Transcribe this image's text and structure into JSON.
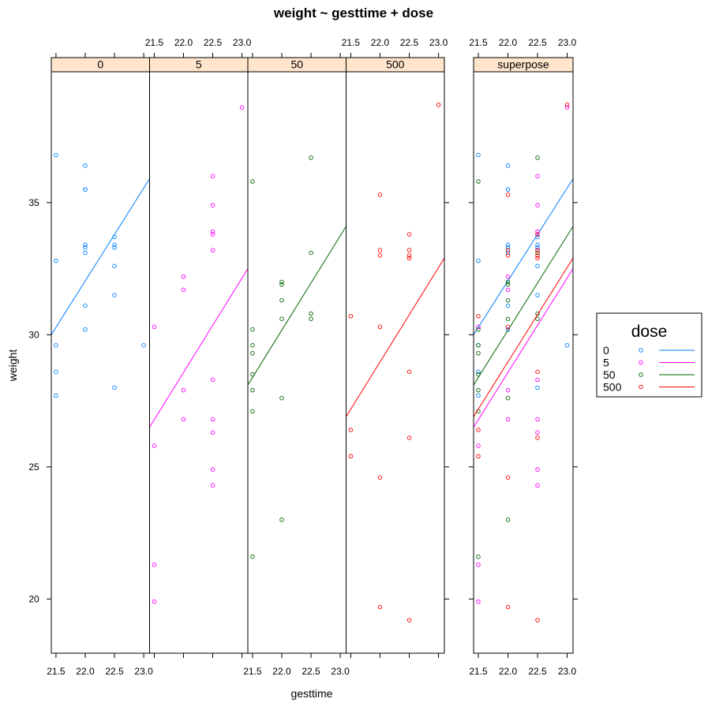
{
  "chart_data": {
    "type": "scatter",
    "title": "weight ~ gesttime + dose",
    "xlabel": "gesttime",
    "ylabel": "weight",
    "xlim": [
      21.42,
      23.1
    ],
    "ylim": [
      17.95,
      39.95
    ],
    "x_ticks": [
      21.5,
      22.0,
      22.5,
      23.0
    ],
    "x_tick_labels": [
      "21.5",
      "22.0",
      "22.5",
      "23.0"
    ],
    "y_ticks": [
      20,
      25,
      30,
      35
    ],
    "y_tick_labels": [
      "20",
      "25",
      "30",
      "35"
    ],
    "panel_bg": "#ffe5cc",
    "panels": [
      {
        "key": "p0",
        "label": "0",
        "series": [
          "d0"
        ]
      },
      {
        "key": "p5",
        "label": "5",
        "series": [
          "d5"
        ]
      },
      {
        "key": "p50",
        "label": "50",
        "series": [
          "d50"
        ]
      },
      {
        "key": "p500",
        "label": "500",
        "series": [
          "d500"
        ]
      },
      {
        "key": "psup",
        "label": "superpose",
        "series": [
          "d0",
          "d5",
          "d50",
          "d500"
        ]
      }
    ],
    "legend": {
      "title": "dose",
      "entries": [
        "0",
        "5",
        "50",
        "500"
      ],
      "position": "right"
    },
    "series": [
      {
        "key": "d0",
        "name": "0",
        "color": "#0080ff",
        "fit": [
          [
            21.42,
            30.0
          ],
          [
            23.1,
            35.9
          ]
        ],
        "points": [
          [
            21.5,
            36.8
          ],
          [
            21.5,
            32.8
          ],
          [
            21.5,
            29.6
          ],
          [
            21.5,
            28.6
          ],
          [
            21.5,
            27.7
          ],
          [
            22.0,
            36.4
          ],
          [
            22.0,
            35.5
          ],
          [
            22.0,
            35.5
          ],
          [
            22.0,
            33.4
          ],
          [
            22.0,
            33.3
          ],
          [
            22.0,
            33.1
          ],
          [
            22.0,
            31.1
          ],
          [
            22.0,
            30.2
          ],
          [
            22.5,
            33.7
          ],
          [
            22.5,
            33.4
          ],
          [
            22.5,
            33.3
          ],
          [
            22.5,
            32.6
          ],
          [
            22.5,
            31.5
          ],
          [
            22.5,
            28.0
          ],
          [
            23.0,
            29.6
          ]
        ]
      },
      {
        "key": "d5",
        "name": "5",
        "color": "#ff00ff",
        "fit": [
          [
            21.42,
            26.5
          ],
          [
            23.1,
            32.5
          ]
        ],
        "points": [
          [
            21.5,
            30.3
          ],
          [
            21.5,
            25.8
          ],
          [
            21.5,
            21.3
          ],
          [
            21.5,
            19.9
          ],
          [
            22.0,
            32.2
          ],
          [
            22.0,
            31.7
          ],
          [
            22.0,
            27.9
          ],
          [
            22.0,
            26.8
          ],
          [
            22.5,
            36.0
          ],
          [
            22.5,
            34.9
          ],
          [
            22.5,
            33.9
          ],
          [
            22.5,
            33.8
          ],
          [
            22.5,
            33.2
          ],
          [
            22.5,
            28.3
          ],
          [
            22.5,
            26.8
          ],
          [
            22.5,
            26.3
          ],
          [
            22.5,
            24.9
          ],
          [
            22.5,
            24.3
          ],
          [
            23.0,
            38.6
          ]
        ]
      },
      {
        "key": "d50",
        "name": "50",
        "color": "#006400",
        "fit": [
          [
            21.42,
            28.1
          ],
          [
            23.1,
            34.1
          ]
        ],
        "points": [
          [
            21.5,
            35.8
          ],
          [
            21.5,
            30.2
          ],
          [
            21.5,
            29.6
          ],
          [
            21.5,
            29.3
          ],
          [
            21.5,
            28.5
          ],
          [
            21.5,
            27.9
          ],
          [
            21.5,
            27.1
          ],
          [
            21.5,
            21.6
          ],
          [
            22.0,
            32.0
          ],
          [
            22.0,
            31.9
          ],
          [
            22.0,
            31.3
          ],
          [
            22.0,
            30.6
          ],
          [
            22.0,
            27.6
          ],
          [
            22.0,
            23.0
          ],
          [
            22.5,
            36.7
          ],
          [
            22.5,
            33.1
          ],
          [
            22.5,
            30.8
          ],
          [
            22.5,
            30.6
          ]
        ]
      },
      {
        "key": "d500",
        "name": "500",
        "color": "#ff0000",
        "fit": [
          [
            21.42,
            26.9
          ],
          [
            23.1,
            32.9
          ]
        ],
        "points": [
          [
            21.5,
            30.7
          ],
          [
            21.5,
            26.4
          ],
          [
            21.5,
            25.4
          ],
          [
            22.0,
            35.3
          ],
          [
            22.0,
            33.2
          ],
          [
            22.0,
            33.0
          ],
          [
            22.0,
            30.3
          ],
          [
            22.0,
            24.6
          ],
          [
            22.0,
            19.7
          ],
          [
            22.5,
            33.8
          ],
          [
            22.5,
            33.2
          ],
          [
            22.5,
            33.0
          ],
          [
            22.5,
            32.9
          ],
          [
            22.5,
            28.6
          ],
          [
            22.5,
            26.1
          ],
          [
            22.5,
            19.2
          ],
          [
            23.0,
            38.7
          ]
        ]
      }
    ]
  }
}
